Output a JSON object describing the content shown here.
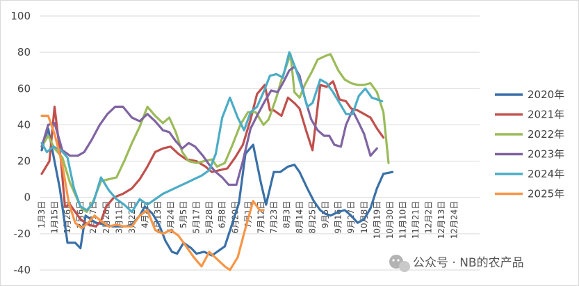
{
  "chart_data": {
    "type": "line",
    "title": "",
    "xlabel": "",
    "ylabel": "",
    "ylim": [
      -40,
      100
    ],
    "yticks": [
      -40,
      -20,
      0,
      20,
      40,
      60,
      80,
      100
    ],
    "grid": "horizontal",
    "legend_position": "right",
    "x_tick_labels": [
      "1月3日",
      "1月15日",
      "1月26日",
      "2月6日",
      "2月17日",
      "2月28日",
      "3月11日",
      "3月22日",
      "4月2日",
      "4月13日",
      "4月24日",
      "5月5日",
      "5月17日",
      "5月28日",
      "6月8日",
      "6月20日",
      "7月1日",
      "7月12日",
      "7月23日",
      "8月3日",
      "8月14日",
      "8月25日",
      "9月5日",
      "9月16日",
      "9月27日",
      "10月8日",
      "10月19日",
      "10月30日",
      "11月10日",
      "11月21日",
      "12月2日",
      "12月13日",
      "12月24日"
    ],
    "series": [
      {
        "name": "2020年",
        "color": "#3a70a8",
        "points": [
          [
            0,
            26
          ],
          [
            0.5,
            38
          ],
          [
            1.4,
            5
          ],
          [
            2,
            -25
          ],
          [
            2.6,
            -25
          ],
          [
            3,
            -28
          ],
          [
            3.4,
            -10
          ],
          [
            4.2,
            -14
          ],
          [
            5,
            -15
          ],
          [
            5.5,
            -16
          ],
          [
            6,
            -16
          ],
          [
            6.5,
            -16
          ],
          [
            7,
            -15
          ],
          [
            7.6,
            -10
          ],
          [
            8,
            -5
          ],
          [
            8.6,
            -9
          ],
          [
            9.1,
            -15
          ],
          [
            9.6,
            -24
          ],
          [
            10.1,
            -30
          ],
          [
            10.5,
            -31
          ],
          [
            11,
            -25
          ],
          [
            11.6,
            -28
          ],
          [
            12,
            -31
          ],
          [
            12.6,
            -30
          ],
          [
            13.2,
            -32
          ],
          [
            13.6,
            -30
          ],
          [
            14.2,
            -27
          ],
          [
            14.8,
            -14
          ],
          [
            15.3,
            -3
          ],
          [
            15.8,
            24
          ],
          [
            16.4,
            29
          ],
          [
            17,
            8
          ],
          [
            17.4,
            -4
          ],
          [
            18,
            14
          ],
          [
            18.5,
            14
          ],
          [
            19.1,
            17
          ],
          [
            19.6,
            18
          ],
          [
            20,
            14
          ],
          [
            20.6,
            5
          ],
          [
            21.1,
            -2
          ],
          [
            21.6,
            -7
          ],
          [
            22,
            -9
          ],
          [
            22.4,
            -10
          ],
          [
            23,
            -8
          ],
          [
            23.5,
            -7
          ],
          [
            24,
            -10
          ],
          [
            24.5,
            -14
          ],
          [
            25,
            -12
          ],
          [
            25.5,
            -6
          ],
          [
            26,
            5
          ],
          [
            26.5,
            13
          ],
          [
            27.2,
            14
          ]
        ]
      },
      {
        "name": "2021年",
        "color": "#c0504d",
        "points": [
          [
            0,
            13
          ],
          [
            0.6,
            20
          ],
          [
            1,
            50
          ],
          [
            1.5,
            20
          ],
          [
            1.8,
            -5
          ],
          [
            2.2,
            -4
          ],
          [
            2.6,
            -8
          ],
          [
            3,
            -12
          ],
          [
            3.6,
            -15
          ],
          [
            4.2,
            -16
          ],
          [
            4.6,
            -13
          ],
          [
            5,
            -5
          ],
          [
            5.6,
            0
          ],
          [
            6.3,
            2
          ],
          [
            7,
            5
          ],
          [
            7.6,
            10
          ],
          [
            8.2,
            17
          ],
          [
            8.8,
            25
          ],
          [
            9.4,
            27
          ],
          [
            10,
            28
          ],
          [
            10.6,
            24
          ],
          [
            11.2,
            21
          ],
          [
            12,
            20
          ],
          [
            12.7,
            17
          ],
          [
            13.2,
            14
          ],
          [
            13.8,
            15
          ],
          [
            14.4,
            16
          ],
          [
            15,
            22
          ],
          [
            15.6,
            29
          ],
          [
            16.2,
            43
          ],
          [
            16.7,
            57
          ],
          [
            17.3,
            62
          ],
          [
            17.7,
            48
          ],
          [
            18,
            48
          ],
          [
            18.6,
            45
          ],
          [
            19.1,
            55
          ],
          [
            19.6,
            52
          ],
          [
            20,
            49
          ],
          [
            20.5,
            37
          ],
          [
            21,
            26
          ],
          [
            21.6,
            62
          ],
          [
            22.1,
            61
          ],
          [
            22.6,
            64
          ],
          [
            23.1,
            54
          ],
          [
            23.6,
            53
          ],
          [
            24,
            49
          ],
          [
            24.5,
            48
          ],
          [
            25,
            46
          ],
          [
            25.5,
            44
          ],
          [
            26,
            38
          ],
          [
            26.5,
            33
          ]
        ]
      },
      {
        "name": "2022年",
        "color": "#9bbb59",
        "points": [
          [
            0,
            28
          ],
          [
            0.5,
            34
          ],
          [
            1,
            27
          ],
          [
            1.6,
            22
          ],
          [
            2.2,
            8
          ],
          [
            2.7,
            0
          ],
          [
            3.1,
            -6
          ],
          [
            3.5,
            -8
          ],
          [
            4,
            -2
          ],
          [
            4.6,
            9
          ],
          [
            5.2,
            10
          ],
          [
            5.8,
            11
          ],
          [
            6.4,
            20
          ],
          [
            7,
            30
          ],
          [
            7.6,
            39
          ],
          [
            8.2,
            50
          ],
          [
            8.8,
            45
          ],
          [
            9.4,
            41
          ],
          [
            9.9,
            44
          ],
          [
            10.4,
            36
          ],
          [
            10.9,
            25
          ],
          [
            11.4,
            20
          ],
          [
            12,
            19
          ],
          [
            12.6,
            20
          ],
          [
            13.2,
            21
          ],
          [
            13.6,
            17
          ],
          [
            14.2,
            19
          ],
          [
            14.8,
            29
          ],
          [
            15.4,
            40
          ],
          [
            16,
            47
          ],
          [
            16.6,
            47
          ],
          [
            17.2,
            40
          ],
          [
            17.6,
            43
          ],
          [
            18.2,
            55
          ],
          [
            18.6,
            65
          ],
          [
            19.3,
            79
          ],
          [
            19.6,
            58
          ],
          [
            20,
            55
          ],
          [
            20.4,
            62
          ],
          [
            21,
            70
          ],
          [
            21.4,
            76
          ],
          [
            22,
            78
          ],
          [
            22.4,
            79
          ],
          [
            23,
            70
          ],
          [
            23.5,
            65
          ],
          [
            24,
            63
          ],
          [
            24.5,
            62
          ],
          [
            25,
            62
          ],
          [
            25.5,
            63
          ],
          [
            26,
            58
          ],
          [
            26.5,
            47
          ],
          [
            26.9,
            19
          ]
        ]
      },
      {
        "name": "2023年",
        "color": "#8064a2",
        "points": [
          [
            0,
            28
          ],
          [
            0.5,
            40
          ],
          [
            1,
            41
          ],
          [
            1.6,
            26
          ],
          [
            2.2,
            23
          ],
          [
            2.8,
            23
          ],
          [
            3.3,
            25
          ],
          [
            3.9,
            32
          ],
          [
            4.5,
            40
          ],
          [
            5.1,
            46
          ],
          [
            5.7,
            50
          ],
          [
            6.3,
            50
          ],
          [
            7,
            44
          ],
          [
            7.6,
            42
          ],
          [
            8.2,
            46
          ],
          [
            8.8,
            42
          ],
          [
            9.4,
            37
          ],
          [
            9.9,
            36
          ],
          [
            10.4,
            31
          ],
          [
            10.9,
            27
          ],
          [
            11.4,
            30
          ],
          [
            11.9,
            28
          ],
          [
            12.5,
            23
          ],
          [
            13,
            18
          ],
          [
            13.5,
            14
          ],
          [
            14,
            11
          ],
          [
            14.5,
            7
          ],
          [
            15.1,
            7
          ],
          [
            15.6,
            20
          ],
          [
            16.2,
            38
          ],
          [
            16.7,
            45
          ],
          [
            17.3,
            53
          ],
          [
            17.8,
            59
          ],
          [
            18.3,
            58
          ],
          [
            18.7,
            63
          ],
          [
            19.2,
            70
          ],
          [
            19.6,
            72
          ],
          [
            20,
            67
          ],
          [
            20.4,
            55
          ],
          [
            20.9,
            43
          ],
          [
            21.4,
            37
          ],
          [
            21.9,
            34
          ],
          [
            22.3,
            34
          ],
          [
            22.7,
            29
          ],
          [
            23.2,
            28
          ],
          [
            23.6,
            40
          ],
          [
            24.1,
            48
          ],
          [
            24.6,
            41
          ],
          [
            25,
            35
          ],
          [
            25.5,
            23
          ],
          [
            26,
            27
          ]
        ]
      },
      {
        "name": "2024年",
        "color": "#4bacc6",
        "points": [
          [
            0,
            30
          ],
          [
            0.4,
            25
          ],
          [
            0.9,
            28
          ],
          [
            1.5,
            26
          ],
          [
            2,
            22
          ],
          [
            2.5,
            5
          ],
          [
            3,
            -5
          ],
          [
            3.5,
            -7
          ],
          [
            4,
            -3
          ],
          [
            4.6,
            11
          ],
          [
            5.2,
            4
          ],
          [
            5.8,
            -1
          ],
          [
            6.4,
            -4
          ],
          [
            7,
            -8
          ],
          [
            7.6,
            -1
          ],
          [
            8.2,
            -4
          ],
          [
            8.8,
            -1
          ],
          [
            9.4,
            2
          ],
          [
            10,
            4
          ],
          [
            10.6,
            6
          ],
          [
            11.2,
            8
          ],
          [
            11.8,
            10
          ],
          [
            12.4,
            12
          ],
          [
            13,
            15
          ],
          [
            13.5,
            24
          ],
          [
            14,
            44
          ],
          [
            14.6,
            55
          ],
          [
            15.2,
            44
          ],
          [
            15.7,
            37
          ],
          [
            16.2,
            47
          ],
          [
            16.7,
            50
          ],
          [
            17.2,
            58
          ],
          [
            17.7,
            67
          ],
          [
            18.2,
            68
          ],
          [
            18.7,
            66
          ],
          [
            19.2,
            80
          ],
          [
            19.7,
            71
          ],
          [
            20.2,
            60
          ],
          [
            20.6,
            50
          ],
          [
            21,
            52
          ],
          [
            21.6,
            65
          ],
          [
            22.1,
            63
          ],
          [
            22.6,
            58
          ],
          [
            23.1,
            52
          ],
          [
            23.6,
            46
          ],
          [
            24.1,
            46
          ],
          [
            24.6,
            56
          ],
          [
            25.1,
            60
          ],
          [
            25.6,
            55
          ],
          [
            26,
            54
          ],
          [
            26.4,
            53
          ]
        ]
      },
      {
        "name": "2025年",
        "color": "#f79646",
        "points": [
          [
            0,
            45
          ],
          [
            0.5,
            45
          ],
          [
            1,
            35
          ],
          [
            1.6,
            18
          ],
          [
            2.1,
            -3
          ],
          [
            2.6,
            -14
          ],
          [
            3.1,
            -17
          ],
          [
            3.6,
            -14
          ],
          [
            4.1,
            -10
          ],
          [
            4.6,
            -13
          ],
          [
            5.2,
            -16
          ],
          [
            5.8,
            -15
          ],
          [
            6.4,
            -16
          ],
          [
            7,
            -16
          ],
          [
            7.6,
            -10
          ],
          [
            8.2,
            -7
          ],
          [
            8.8,
            -18
          ],
          [
            9.4,
            -20
          ],
          [
            10,
            -18
          ],
          [
            10.6,
            -21
          ],
          [
            11.2,
            -27
          ],
          [
            11.8,
            -33
          ],
          [
            12.4,
            -38
          ],
          [
            13,
            -30
          ],
          [
            13.6,
            -34
          ],
          [
            14.2,
            -38
          ],
          [
            14.6,
            -40
          ],
          [
            15.2,
            -33
          ],
          [
            15.8,
            -17
          ],
          [
            16.4,
            -2
          ],
          [
            16.9,
            -7
          ],
          [
            17.2,
            -7
          ]
        ]
      }
    ]
  },
  "watermark": {
    "text": "公众号 · NB的农产品"
  }
}
